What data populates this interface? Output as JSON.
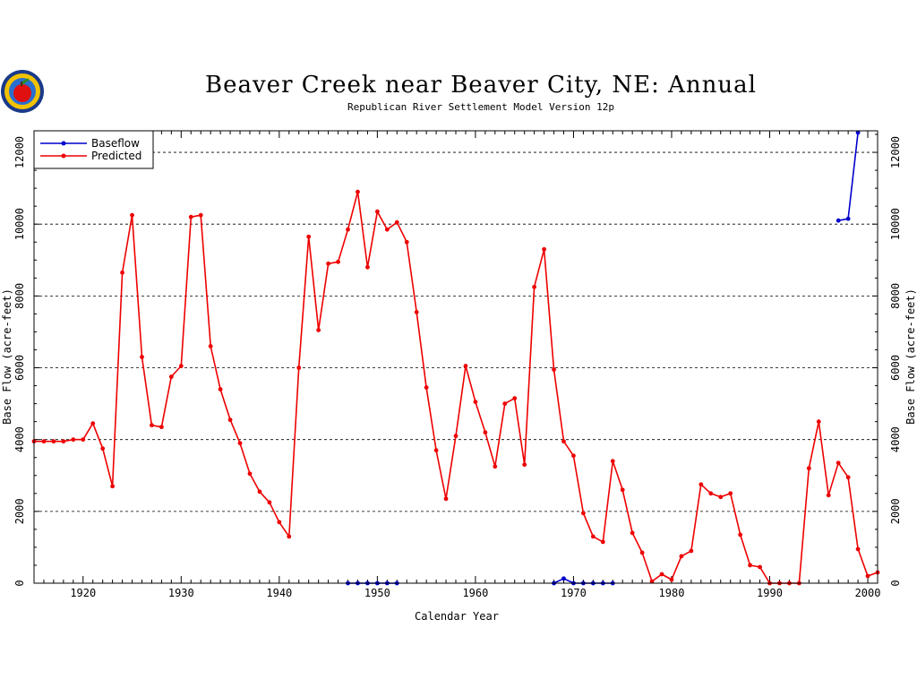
{
  "chart_data": {
    "type": "line",
    "title": "Beaver Creek near Beaver City, NE: Annual",
    "subtitle": "Republican River Settlement Model Version 12p",
    "xlabel": "Calendar Year",
    "ylabel": "Base Flow (acre-feet)",
    "xlim": [
      1915,
      2001
    ],
    "ylim": [
      0,
      12600
    ],
    "x_ticks": [
      1920,
      1930,
      1940,
      1950,
      1960,
      1970,
      1980,
      1990,
      2000
    ],
    "y_ticks": [
      0,
      2000,
      4000,
      6000,
      8000,
      10000,
      12000
    ],
    "grid": "horizontal dashed",
    "legend_position": "top-left",
    "colors": {
      "baseflow": "#0000cc",
      "predicted": "#ee0000"
    },
    "series": [
      {
        "name": "Baseflow",
        "key": "baseflow",
        "points": [
          [
            1947,
            0
          ],
          [
            1948,
            0
          ],
          [
            1949,
            0
          ],
          [
            1950,
            0
          ],
          [
            1951,
            0
          ],
          [
            1952,
            0
          ],
          [
            1968,
            0
          ],
          [
            1969,
            130
          ],
          [
            1970,
            0
          ],
          [
            1971,
            0
          ],
          [
            1972,
            0
          ],
          [
            1973,
            0
          ],
          [
            1974,
            0
          ],
          [
            1997,
            10100
          ],
          [
            1998,
            10150
          ],
          [
            1999,
            12550
          ]
        ],
        "segments": [
          [
            0,
            5
          ],
          [
            6,
            12
          ],
          [
            13,
            15
          ]
        ]
      },
      {
        "name": "Predicted",
        "key": "predicted",
        "points": [
          [
            1915,
            3950
          ],
          [
            1916,
            3950
          ],
          [
            1917,
            3950
          ],
          [
            1918,
            3950
          ],
          [
            1919,
            4000
          ],
          [
            1920,
            4000
          ],
          [
            1921,
            4450
          ],
          [
            1922,
            3750
          ],
          [
            1923,
            2700
          ],
          [
            1924,
            8650
          ],
          [
            1925,
            10250
          ],
          [
            1926,
            6300
          ],
          [
            1927,
            4400
          ],
          [
            1928,
            4350
          ],
          [
            1929,
            5750
          ],
          [
            1930,
            6050
          ],
          [
            1931,
            10200
          ],
          [
            1932,
            10250
          ],
          [
            1933,
            6600
          ],
          [
            1934,
            5400
          ],
          [
            1935,
            4550
          ],
          [
            1936,
            3900
          ],
          [
            1937,
            3050
          ],
          [
            1938,
            2550
          ],
          [
            1939,
            2250
          ],
          [
            1940,
            1700
          ],
          [
            1941,
            1300
          ],
          [
            1942,
            6000
          ],
          [
            1943,
            9650
          ],
          [
            1944,
            7050
          ],
          [
            1945,
            8900
          ],
          [
            1946,
            8950
          ],
          [
            1947,
            9850
          ],
          [
            1948,
            10900
          ],
          [
            1949,
            8800
          ],
          [
            1950,
            10350
          ],
          [
            1951,
            9850
          ],
          [
            1952,
            10050
          ],
          [
            1953,
            9500
          ],
          [
            1954,
            7550
          ],
          [
            1955,
            5450
          ],
          [
            1956,
            3700
          ],
          [
            1957,
            2350
          ],
          [
            1958,
            4100
          ],
          [
            1959,
            6050
          ],
          [
            1960,
            5050
          ],
          [
            1961,
            4200
          ],
          [
            1962,
            3250
          ],
          [
            1963,
            5000
          ],
          [
            1964,
            5150
          ],
          [
            1965,
            3300
          ],
          [
            1966,
            8250
          ],
          [
            1967,
            9300
          ],
          [
            1968,
            5950
          ],
          [
            1969,
            3950
          ],
          [
            1970,
            3550
          ],
          [
            1971,
            1950
          ],
          [
            1972,
            1300
          ],
          [
            1973,
            1150
          ],
          [
            1974,
            3400
          ],
          [
            1975,
            2600
          ],
          [
            1976,
            1400
          ],
          [
            1977,
            850
          ],
          [
            1978,
            50
          ],
          [
            1979,
            250
          ],
          [
            1980,
            100
          ],
          [
            1981,
            750
          ],
          [
            1982,
            900
          ],
          [
            1983,
            2750
          ],
          [
            1984,
            2500
          ],
          [
            1985,
            2400
          ],
          [
            1986,
            2500
          ],
          [
            1987,
            1350
          ],
          [
            1988,
            500
          ],
          [
            1989,
            450
          ],
          [
            1990,
            0
          ],
          [
            1991,
            0
          ],
          [
            1992,
            0
          ],
          [
            1993,
            0
          ],
          [
            1994,
            3200
          ],
          [
            1995,
            4500
          ],
          [
            1996,
            2450
          ],
          [
            1997,
            3350
          ],
          [
            1998,
            2950
          ],
          [
            1999,
            950
          ],
          [
            2000,
            200
          ],
          [
            2001,
            300
          ]
        ]
      }
    ]
  }
}
